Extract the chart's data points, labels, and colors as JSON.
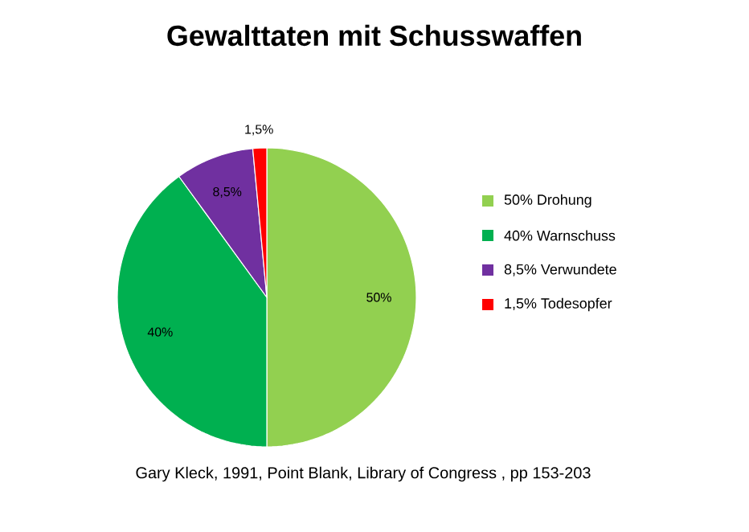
{
  "chart_data": {
    "type": "pie",
    "title": "Gewalttaten mit Schusswaffen",
    "categories": [
      "50% Drohung",
      "40% Warnschuss",
      "8,5% Verwundete",
      "1,5% Todesopfer"
    ],
    "values": [
      50,
      40,
      8.5,
      1.5
    ],
    "value_labels": [
      "50%",
      "40%",
      "8,5%",
      "1,5%"
    ],
    "colors": [
      "#92d050",
      "#00b050",
      "#7030a0",
      "#ff0000"
    ],
    "legend": "right",
    "annotations": [
      "Gary Kleck, 1991, Point Blank, Library of Congress , pp 153-203"
    ]
  }
}
